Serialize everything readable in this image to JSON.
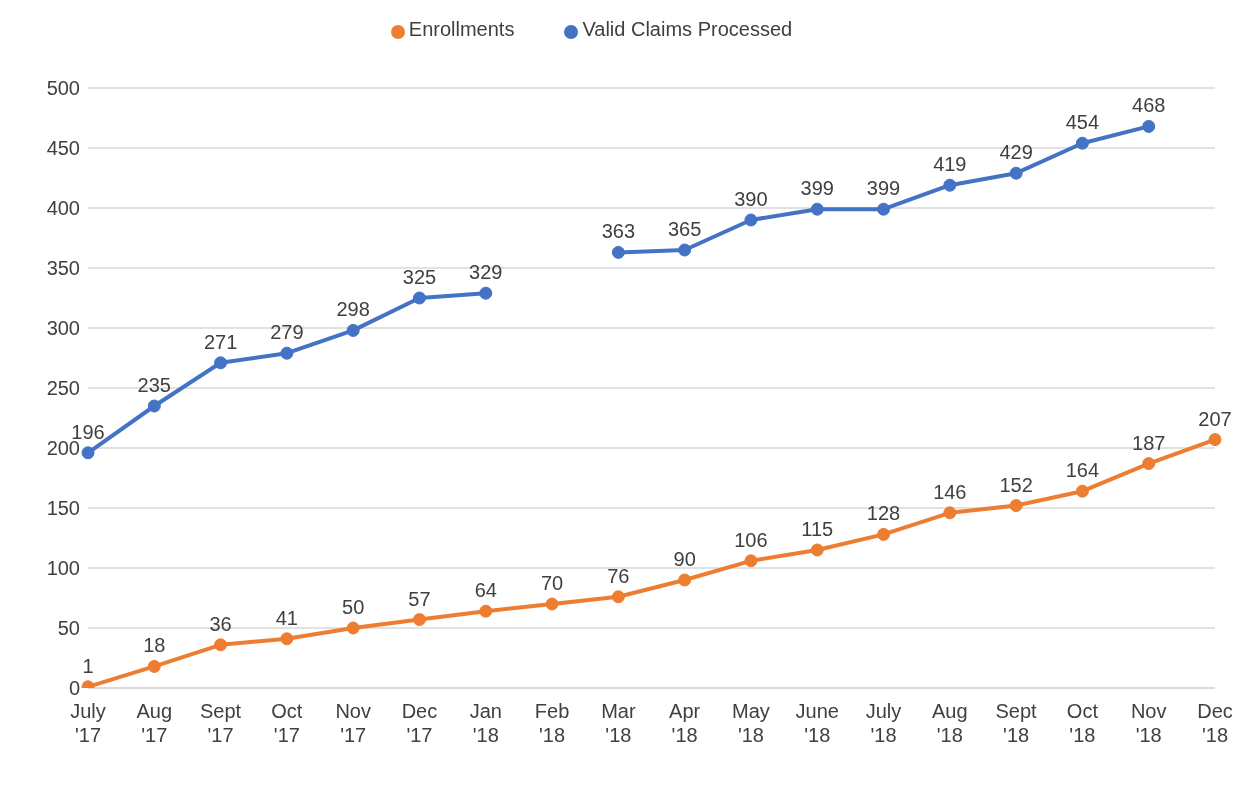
{
  "chart_data": {
    "type": "line",
    "categories": [
      "July '17",
      "Aug '17",
      "Sept '17",
      "Oct '17",
      "Nov '17",
      "Dec '17",
      "Jan '18",
      "Feb '18",
      "Mar '18",
      "Apr '18",
      "May '18",
      "June '18",
      "July '18",
      "Aug '18",
      "Sept '18",
      "Oct '18",
      "Nov '18",
      "Dec '18"
    ],
    "series": [
      {
        "name": "Valid Claims Processed",
        "color": "#4472c4",
        "values": [
          196,
          235,
          271,
          279,
          298,
          325,
          329,
          null,
          363,
          365,
          390,
          399,
          399,
          419,
          429,
          454,
          468,
          null
        ]
      },
      {
        "name": "Enrollments",
        "color": "#ed7d31",
        "values": [
          1,
          18,
          36,
          41,
          50,
          57,
          64,
          70,
          76,
          90,
          106,
          115,
          128,
          146,
          152,
          164,
          187,
          207
        ]
      }
    ],
    "ylim": [
      0,
      500
    ],
    "yticks": [
      0,
      50,
      100,
      150,
      200,
      250,
      300,
      350,
      400,
      450,
      500
    ],
    "grid": "y",
    "legend": "top",
    "marker": "circle",
    "line_style": "solid",
    "data_labels": true
  }
}
